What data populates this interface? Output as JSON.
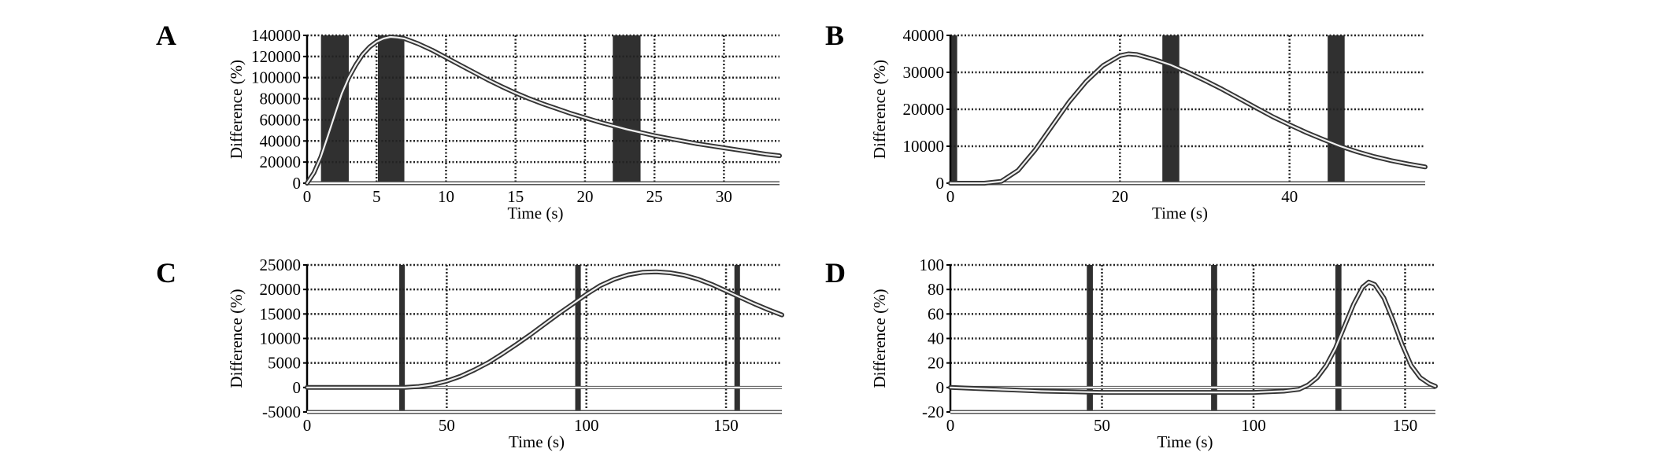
{
  "figure": {
    "colors": {
      "curve": "#333333",
      "grid": "#222222",
      "bands": "#1e1e1e",
      "text": "#000000"
    }
  },
  "chart_data": [
    {
      "type": "line",
      "panel_label": "A",
      "xlabel": "Time (s)",
      "ylabel": "Difference (%)",
      "xlim": [
        0,
        34
      ],
      "ylim": [
        0,
        140000
      ],
      "xticks": [
        0,
        5,
        10,
        15,
        20,
        25,
        30
      ],
      "yticks": [
        0,
        20000,
        40000,
        60000,
        80000,
        100000,
        120000,
        140000
      ],
      "grid": true,
      "bands": [
        [
          1.0,
          3.0
        ],
        [
          5.1,
          7.0
        ],
        [
          22.0,
          24.0
        ]
      ],
      "series": [
        {
          "x": [
            0,
            0.5,
            1,
            1.5,
            2,
            2.5,
            3,
            3.5,
            4,
            4.5,
            5,
            5.5,
            6,
            6.5,
            7,
            8,
            9,
            10,
            11,
            12,
            13,
            14,
            15,
            16,
            17,
            18,
            19,
            20,
            21,
            22,
            23,
            24,
            25,
            26,
            27,
            28,
            29,
            30,
            31,
            32,
            33,
            34
          ],
          "y": [
            0,
            10000,
            25000,
            45000,
            65000,
            85000,
            100000,
            112000,
            122000,
            129000,
            134000,
            137000,
            138500,
            138000,
            137000,
            132000,
            126000,
            119000,
            112000,
            105000,
            98000,
            91500,
            85500,
            80000,
            75000,
            70500,
            66000,
            62000,
            58000,
            54500,
            51000,
            48000,
            45000,
            42500,
            40000,
            37500,
            35500,
            33500,
            31500,
            29500,
            27500,
            26000
          ]
        }
      ]
    },
    {
      "type": "line",
      "panel_label": "B",
      "xlabel": "Time (s)",
      "ylabel": "Difference (%)",
      "xlim": [
        0,
        56
      ],
      "ylim": [
        0,
        40000
      ],
      "xticks": [
        0,
        20,
        40
      ],
      "yticks": [
        0,
        10000,
        20000,
        30000,
        40000
      ],
      "grid": true,
      "bands": [
        [
          0,
          0.8
        ],
        [
          25,
          27
        ],
        [
          44.5,
          46.5
        ]
      ],
      "series": [
        {
          "x": [
            0,
            4,
            6,
            8,
            10,
            12,
            14,
            16,
            18,
            20,
            21,
            22,
            24,
            26,
            28,
            30,
            32,
            34,
            36,
            38,
            40,
            42,
            44,
            46,
            48,
            50,
            52,
            54,
            56
          ],
          "y": [
            0,
            0,
            500,
            3500,
            9000,
            15500,
            22000,
            27500,
            31800,
            34500,
            35000,
            34800,
            33500,
            32000,
            30000,
            27800,
            25500,
            23000,
            20500,
            18000,
            15800,
            13700,
            11800,
            10000,
            8500,
            7200,
            6100,
            5200,
            4400
          ]
        }
      ]
    },
    {
      "type": "line",
      "panel_label": "C",
      "xlabel": "Time (s)",
      "ylabel": "Difference (%)",
      "xlim": [
        0,
        170
      ],
      "ylim": [
        -5000,
        25000
      ],
      "xticks": [
        0,
        50,
        100,
        150
      ],
      "yticks": [
        -5000,
        0,
        5000,
        10000,
        15000,
        20000,
        25000
      ],
      "grid": true,
      "bands": [
        [
          33,
          35
        ],
        [
          96,
          98
        ],
        [
          153,
          155
        ]
      ],
      "series": [
        {
          "x": [
            0,
            30,
            35,
            40,
            45,
            50,
            55,
            60,
            65,
            70,
            75,
            80,
            85,
            90,
            95,
            100,
            105,
            110,
            115,
            120,
            125,
            130,
            135,
            140,
            145,
            150,
            155,
            160,
            165,
            170
          ],
          "y": [
            0,
            0,
            0,
            200,
            600,
            1300,
            2300,
            3600,
            5100,
            6900,
            8800,
            10800,
            12900,
            15000,
            17000,
            19000,
            20800,
            22100,
            23000,
            23500,
            23600,
            23400,
            22900,
            22100,
            21000,
            19700,
            18400,
            17100,
            15900,
            14800
          ]
        }
      ]
    },
    {
      "type": "line",
      "panel_label": "D",
      "xlabel": "Time (s)",
      "ylabel": "Difference (%)",
      "xlim": [
        0,
        160
      ],
      "ylim": [
        -20,
        100
      ],
      "xticks": [
        0,
        50,
        100,
        150
      ],
      "yticks": [
        -20,
        0,
        20,
        40,
        60,
        80,
        100
      ],
      "grid": true,
      "bands": [
        [
          45,
          47
        ],
        [
          86,
          88
        ],
        [
          127,
          129
        ]
      ],
      "series": [
        {
          "x": [
            0,
            10,
            20,
            30,
            40,
            50,
            60,
            70,
            80,
            90,
            100,
            110,
            115,
            118,
            121,
            124,
            127,
            130,
            133,
            136,
            138,
            140,
            143,
            146,
            149,
            152,
            155,
            158,
            160
          ],
          "y": [
            0,
            -1,
            -2,
            -3,
            -3.5,
            -4,
            -4,
            -4,
            -4,
            -4,
            -4,
            -3,
            -1.5,
            2,
            8,
            18,
            32,
            50,
            68,
            82,
            86,
            84,
            73,
            55,
            35,
            18,
            8,
            3,
            1
          ]
        }
      ]
    }
  ]
}
